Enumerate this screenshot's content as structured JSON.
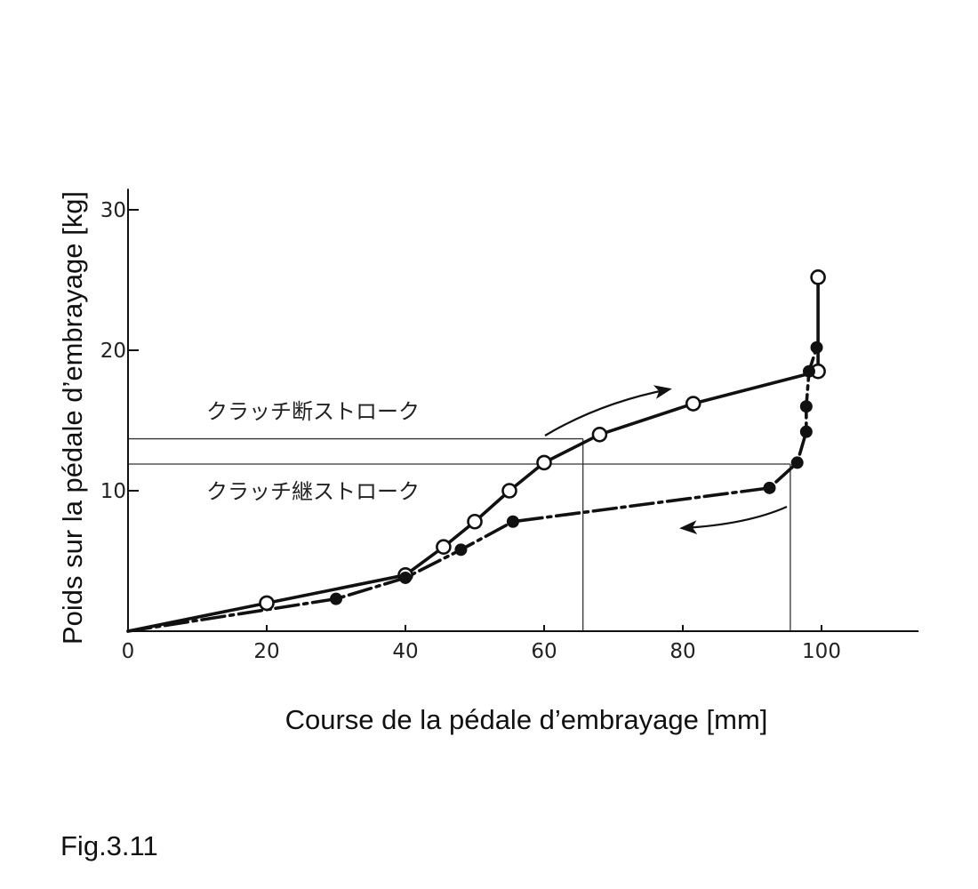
{
  "figure_label": "Fig.3.11",
  "chart_data": {
    "type": "line",
    "title": "",
    "xlabel": "Course de la pédale d’embrayage [mm]",
    "ylabel": "Poids sur la pédale d’embrayage [kg]",
    "xlim": [
      0,
      114
    ],
    "ylim": [
      0,
      32
    ],
    "x_ticks": [
      0,
      20,
      40,
      60,
      80,
      100
    ],
    "y_ticks": [
      10,
      20,
      30
    ],
    "grid": false,
    "legend": "none",
    "series": [
      {
        "marker": "open-circle",
        "line_style": "solid",
        "direction": "increasing stroke",
        "points": [
          {
            "x": 0,
            "y": 0
          },
          {
            "x": 20,
            "y": 2
          },
          {
            "x": 40,
            "y": 4
          },
          {
            "x": 45.5,
            "y": 6
          },
          {
            "x": 50,
            "y": 7.8
          },
          {
            "x": 55,
            "y": 10
          },
          {
            "x": 60,
            "y": 12
          },
          {
            "x": 68,
            "y": 14
          },
          {
            "x": 81.5,
            "y": 16.2
          },
          {
            "x": 99.5,
            "y": 18.5
          },
          {
            "x": 99.5,
            "y": 25.2
          }
        ]
      },
      {
        "marker": "filled-circle",
        "line_style": "dash-dot",
        "direction": "decreasing stroke",
        "points": [
          {
            "x": 0,
            "y": 0
          },
          {
            "x": 30,
            "y": 2.3
          },
          {
            "x": 40,
            "y": 3.8
          },
          {
            "x": 48,
            "y": 5.8
          },
          {
            "x": 55.5,
            "y": 7.8
          },
          {
            "x": 92.5,
            "y": 10.2
          },
          {
            "x": 96.5,
            "y": 12
          },
          {
            "x": 97.8,
            "y": 14.2
          },
          {
            "x": 97.8,
            "y": 16
          },
          {
            "x": 98.2,
            "y": 18.5
          },
          {
            "x": 99.3,
            "y": 20.2
          }
        ]
      }
    ],
    "reference_lines": [
      {
        "label": "クラッチ断ストローク",
        "y": 13.7,
        "x_end": 65.6
      },
      {
        "label": "クラッチ継ストローク",
        "y": 11.9,
        "x_end": 95.5
      }
    ],
    "arrows": [
      {
        "direction": "right",
        "along": "increasing curve"
      },
      {
        "direction": "left",
        "along": "decreasing curve"
      }
    ]
  }
}
